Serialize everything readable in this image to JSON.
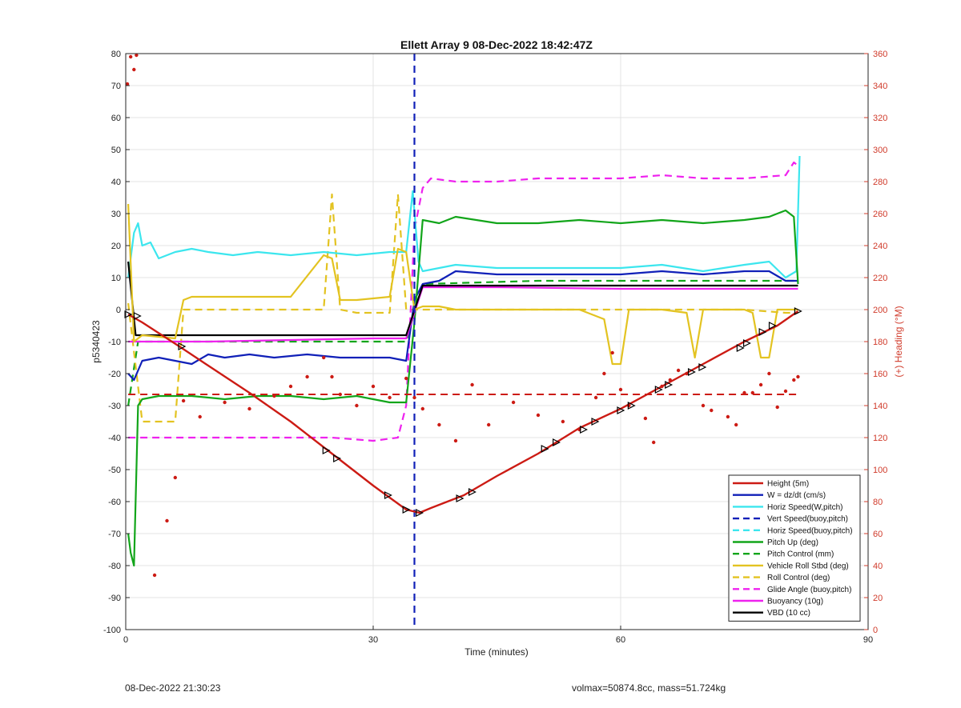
{
  "chart_data": {
    "type": "line",
    "title": "Ellett Array 9 08-Dec-2022 18:42:47Z",
    "xlabel": "Time (minutes)",
    "ylabel": "p5340423",
    "y2label": "(+) Heading (°M)",
    "xlim": [
      0,
      90
    ],
    "ylim": [
      -100,
      80
    ],
    "y2lim": [
      0,
      360
    ],
    "xticks": [
      0,
      30,
      60,
      90
    ],
    "yticks": [
      -100,
      -90,
      -80,
      -70,
      -60,
      -50,
      -40,
      -30,
      -20,
      -10,
      0,
      10,
      20,
      30,
      40,
      50,
      60,
      70,
      80
    ],
    "y2ticks": [
      0,
      20,
      40,
      60,
      80,
      100,
      120,
      140,
      160,
      180,
      200,
      220,
      240,
      260,
      280,
      300,
      320,
      340,
      360
    ],
    "grid": true,
    "legend_position": "bottom-right",
    "colors": {
      "red": "#cc1b14",
      "blue": "#1020b8",
      "cyan": "#3ce6ee",
      "green": "#12a51a",
      "yellow": "#e3c321",
      "magenta": "#ee22ee",
      "black": "#000000",
      "axis_right": "#d03a2a"
    },
    "vertical_marker_x": 35,
    "series": [
      {
        "name": "Height (5m)",
        "color": "#cc1b14",
        "style": "solid",
        "x": [
          0.3,
          2,
          6.5,
          10,
          15,
          20,
          25,
          30,
          34,
          35.6,
          37,
          41,
          45,
          50,
          55,
          60,
          65,
          70,
          75,
          79,
          81.5
        ],
        "y": [
          -1.5,
          -4,
          -11.5,
          -17.5,
          -26,
          -35,
          -45,
          -55,
          -62.5,
          -63.5,
          -62,
          -58,
          -52,
          -45,
          -37,
          -31,
          -24,
          -17,
          -10,
          -5,
          -0.5
        ]
      },
      {
        "name": "W = dz/dt (cm/s)",
        "color": "#1020b8",
        "style": "solid",
        "x": [
          0.3,
          1,
          2,
          4,
          6,
          8,
          10,
          12,
          15,
          18,
          22,
          26,
          30,
          32,
          34,
          35,
          36,
          38,
          40,
          45,
          50,
          55,
          60,
          65,
          70,
          75,
          78,
          80,
          81.5
        ],
        "y": [
          -20,
          -22,
          -16,
          -15,
          -16,
          -17,
          -14,
          -15,
          -14,
          -15,
          -14,
          -15,
          -15,
          -15,
          -16,
          3,
          8,
          9,
          12,
          11,
          11,
          11,
          11,
          12,
          11,
          12,
          12,
          9,
          9
        ]
      },
      {
        "name": "Horiz Speed(W,pitch)",
        "color": "#3ce6ee",
        "style": "solid",
        "x": [
          0.3,
          1,
          1.5,
          2,
          3,
          4,
          6,
          8,
          10,
          13,
          16,
          20,
          24,
          28,
          32,
          34,
          34.8,
          35.5,
          36,
          38,
          40,
          45,
          50,
          55,
          60,
          65,
          70,
          75,
          78,
          80,
          81.3,
          81.7
        ],
        "y": [
          10,
          24,
          27,
          20,
          21,
          16,
          18,
          19,
          18,
          17,
          18,
          17,
          18,
          17,
          18,
          18,
          37,
          15,
          12,
          13,
          14,
          13,
          13,
          13,
          13,
          14,
          12,
          14,
          15,
          10,
          12,
          48
        ]
      },
      {
        "name": "Vert Speed(buoy,pitch)",
        "color": "#1020b8",
        "style": "dashed",
        "x": [
          35,
          35
        ],
        "y": [
          80,
          -100
        ]
      },
      {
        "name": "Horiz Speed(buoy,pitch)",
        "color": "#3ce6ee",
        "style": "dashed",
        "x": [],
        "y": []
      },
      {
        "name": "Pitch Up (deg)",
        "color": "#12a51a",
        "style": "solid",
        "x": [
          0.3,
          0.6,
          1,
          1.5,
          2,
          4,
          8,
          12,
          16,
          20,
          24,
          28,
          32,
          34,
          35,
          36,
          38,
          40,
          45,
          50,
          55,
          60,
          65,
          70,
          75,
          78,
          80,
          81,
          81.5
        ],
        "y": [
          -70,
          -76,
          -80,
          -30,
          -28,
          -27,
          -27,
          -28,
          -27,
          -27,
          -28,
          -27,
          -29,
          -29,
          -4,
          28,
          27,
          29,
          27,
          27,
          28,
          27,
          28,
          27,
          28,
          29,
          31,
          29,
          8
        ]
      },
      {
        "name": "Pitch Control (mm)",
        "color": "#12a51a",
        "style": "dashed",
        "x": [
          0.3,
          1.5,
          34,
          36,
          50,
          70,
          81.5
        ],
        "y": [
          -30,
          -10,
          -10,
          8,
          9,
          9,
          9
        ]
      },
      {
        "name": "Vehicle Roll Stbd (deg)",
        "color": "#e3c321",
        "style": "solid",
        "x": [
          0.3,
          1,
          2,
          6,
          7,
          8,
          15,
          20,
          24,
          25,
          26,
          27,
          28,
          32,
          33,
          34,
          35,
          36,
          38,
          40,
          45,
          50,
          55,
          58,
          59,
          60,
          61,
          65,
          68,
          69,
          70,
          75,
          76,
          77,
          78,
          79,
          80,
          81.5
        ],
        "y": [
          33,
          -10,
          -8,
          -9,
          3,
          4,
          4,
          4,
          17,
          16,
          3,
          3,
          3,
          4,
          19,
          18,
          0,
          1,
          1,
          0,
          0,
          0,
          0,
          -3,
          -17,
          -17,
          0,
          0,
          -1,
          -15,
          0,
          0,
          -1,
          -15,
          -15,
          0,
          0,
          0
        ]
      },
      {
        "name": "Roll Control (deg)",
        "color": "#e3c321",
        "style": "dashed",
        "x": [
          0.3,
          2,
          6,
          7,
          24,
          25,
          26,
          28,
          32,
          33,
          34,
          35,
          36,
          40,
          45,
          50,
          55,
          60,
          65,
          70,
          75,
          80,
          81.5
        ],
        "y": [
          2,
          -35,
          -35,
          0,
          0,
          36,
          0,
          -1,
          -1,
          36,
          0,
          0,
          0,
          0,
          0,
          0,
          0,
          0,
          0,
          0,
          0,
          -1,
          -1
        ]
      },
      {
        "name": "Glide Angle (buoy,pitch)",
        "color": "#ee22ee",
        "style": "dashed",
        "x": [
          0.3,
          1,
          2,
          5,
          10,
          15,
          20,
          25,
          30,
          33,
          34,
          35,
          36,
          37,
          40,
          45,
          50,
          55,
          60,
          65,
          70,
          75,
          80,
          81,
          81.5
        ],
        "y": [
          -40,
          -40,
          -40,
          -40,
          -40,
          -40,
          -40,
          -40,
          -41,
          -40,
          -30,
          25,
          38,
          41,
          40,
          40,
          41,
          41,
          41,
          42,
          41,
          41,
          42,
          46,
          45
        ]
      },
      {
        "name": "Buoyancy (10g)",
        "color": "#ee22ee",
        "style": "solid",
        "x": [
          0.3,
          1.5,
          10,
          20,
          30,
          34,
          36,
          45,
          60,
          75,
          81.5
        ],
        "y": [
          -10,
          -10,
          -10,
          -9.5,
          -9,
          -9,
          7,
          7,
          6.5,
          6.5,
          6.5
        ]
      },
      {
        "name": "VBD (10 cc)",
        "color": "#000000",
        "style": "solid",
        "x": [
          0.3,
          1.2,
          34,
          36,
          81.5
        ],
        "y": [
          15,
          -8,
          -8,
          7.5,
          7.5
        ]
      }
    ],
    "heading_mean": {
      "axis": "right",
      "style": "dashed",
      "color": "#cc1b14",
      "x": [
        0.3,
        81.5
      ],
      "y": [
        147,
        147
      ]
    },
    "heading_points": {
      "axis": "right",
      "color": "#cc1b14",
      "style": "dots",
      "x": [
        0.2,
        0.6,
        1,
        1.3,
        3.5,
        5,
        6,
        7,
        9,
        12,
        15,
        18,
        20,
        22,
        24,
        25,
        26,
        28,
        30,
        32,
        34,
        35,
        36,
        38,
        40,
        42,
        44,
        47,
        50,
        53,
        55,
        57,
        58,
        59,
        60,
        61,
        63,
        64,
        65,
        66,
        67,
        68,
        70,
        71,
        73,
        74,
        75,
        76,
        77,
        78,
        79,
        80,
        81,
        81.5
      ],
      "y": [
        341,
        358,
        350,
        359,
        34,
        68,
        95,
        143,
        133,
        142,
        138,
        146,
        152,
        158,
        170,
        158,
        147,
        140,
        152,
        145,
        157,
        145,
        138,
        128,
        118,
        153,
        128,
        142,
        134,
        130,
        125,
        145,
        160,
        173,
        150,
        140,
        132,
        117,
        152,
        156,
        162,
        160,
        140,
        137,
        133,
        128,
        148,
        148,
        153,
        160,
        139,
        149,
        156,
        158
      ]
    },
    "height_markers": {
      "x": [
        0.3,
        1.4,
        6.8,
        24.3,
        25.6,
        31.8,
        34,
        35.6,
        40.5,
        42,
        50.8,
        52.2,
        55.5,
        56.9,
        60,
        61.3,
        64.6,
        65.8,
        68.6,
        69.9,
        74.5,
        75.3,
        77.2,
        78.4,
        81.5
      ],
      "y": [
        -1.5,
        -2,
        -11.5,
        -44,
        -46.5,
        -58,
        -62.5,
        -63.5,
        -59,
        -57,
        -43.5,
        -41.5,
        -37.5,
        -35,
        -31.5,
        -30,
        -25,
        -23.5,
        -19.5,
        -18,
        -12,
        -10.5,
        -7,
        -5,
        -0.5
      ]
    }
  },
  "footer": {
    "timestamp": "08-Dec-2022 21:30:23",
    "stats": "volmax=50874.8cc, mass=51.724kg"
  }
}
